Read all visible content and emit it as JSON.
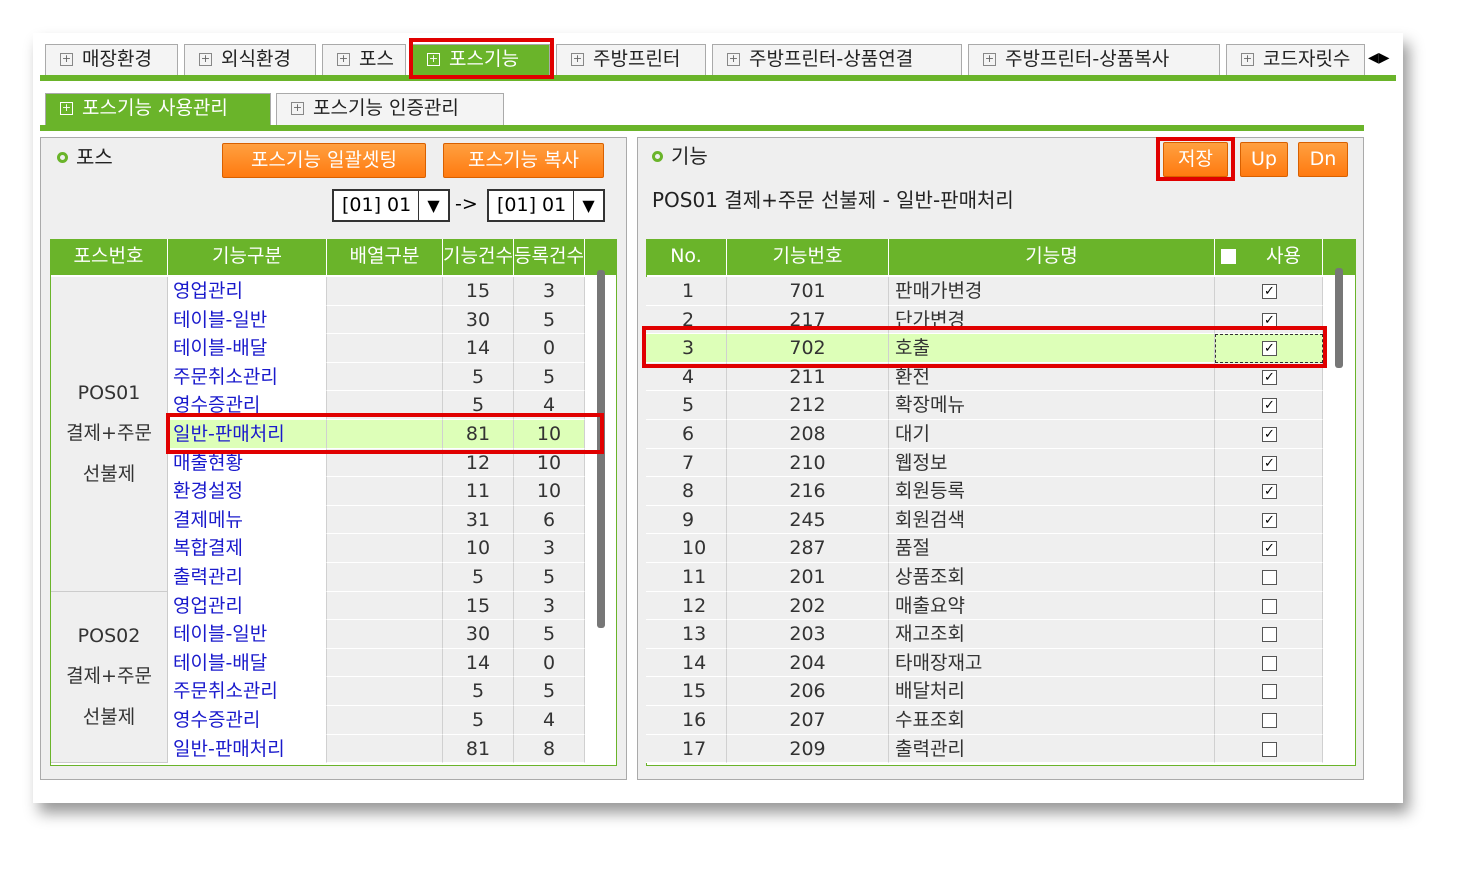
{
  "tabs": [
    "매장환경",
    "외식환경",
    "포스",
    "포스기능",
    "주방프린터",
    "주방프린터-상품연결",
    "주방프린터-상품복사",
    "코드자릿수"
  ],
  "subtabs": [
    "포스기능 사용관리",
    "포스기능 인증관리"
  ],
  "left": {
    "title": "포스",
    "buttons": [
      "포스기능 일괄셋팅",
      "포스기능 복사"
    ],
    "selects": [
      "[01] 01",
      "[01] 01"
    ],
    "arrow": "->",
    "headers": [
      "포스번호",
      "기능구분",
      "배열구분",
      "기능건수",
      "등록건수"
    ],
    "groups": [
      {
        "pos": [
          "POS01",
          "결제+주문",
          "선불제"
        ],
        "rows": [
          [
            "영업관리",
            15,
            3
          ],
          [
            "테이블-일반",
            30,
            5
          ],
          [
            "테이블-배달",
            14,
            0
          ],
          [
            "주문취소관리",
            5,
            5
          ],
          [
            "영수증관리",
            5,
            4
          ],
          [
            "일반-판매처리",
            81,
            10
          ],
          [
            "매출현황",
            12,
            10
          ],
          [
            "환경설정",
            11,
            10
          ],
          [
            "결제메뉴",
            31,
            6
          ],
          [
            "복합결제",
            10,
            3
          ],
          [
            "출력관리",
            5,
            5
          ]
        ]
      },
      {
        "pos": [
          "POS02",
          "결제+주문",
          "선불제"
        ],
        "rows": [
          [
            "영업관리",
            15,
            3
          ],
          [
            "테이블-일반",
            30,
            5
          ],
          [
            "테이블-배달",
            14,
            0
          ],
          [
            "주문취소관리",
            5,
            5
          ],
          [
            "영수증관리",
            5,
            4
          ],
          [
            "일반-판매처리",
            81,
            8
          ]
        ]
      }
    ]
  },
  "right": {
    "title": "기능",
    "buttons": [
      "저장",
      "Up",
      "Dn"
    ],
    "caption": "POS01 결제+주문 선불제 - 일반-판매처리",
    "headers": [
      "No.",
      "기능번호",
      "기능명",
      "사용"
    ],
    "rows": [
      [
        1,
        701,
        "판매가변경",
        true
      ],
      [
        2,
        217,
        "단가변경",
        true
      ],
      [
        3,
        702,
        "호출",
        true
      ],
      [
        4,
        211,
        "환전",
        true
      ],
      [
        5,
        212,
        "확장메뉴",
        true
      ],
      [
        6,
        208,
        "대기",
        true
      ],
      [
        7,
        210,
        "웹정보",
        true
      ],
      [
        8,
        216,
        "회원등록",
        true
      ],
      [
        9,
        245,
        "회원검색",
        true
      ],
      [
        10,
        287,
        "품절",
        true
      ],
      [
        11,
        201,
        "상품조회",
        false
      ],
      [
        12,
        202,
        "매출요약",
        false
      ],
      [
        13,
        203,
        "재고조회",
        false
      ],
      [
        14,
        204,
        "타매장재고",
        false
      ],
      [
        15,
        206,
        "배달처리",
        false
      ],
      [
        16,
        207,
        "수표조회",
        false
      ],
      [
        17,
        209,
        "출력관리",
        false
      ]
    ]
  }
}
